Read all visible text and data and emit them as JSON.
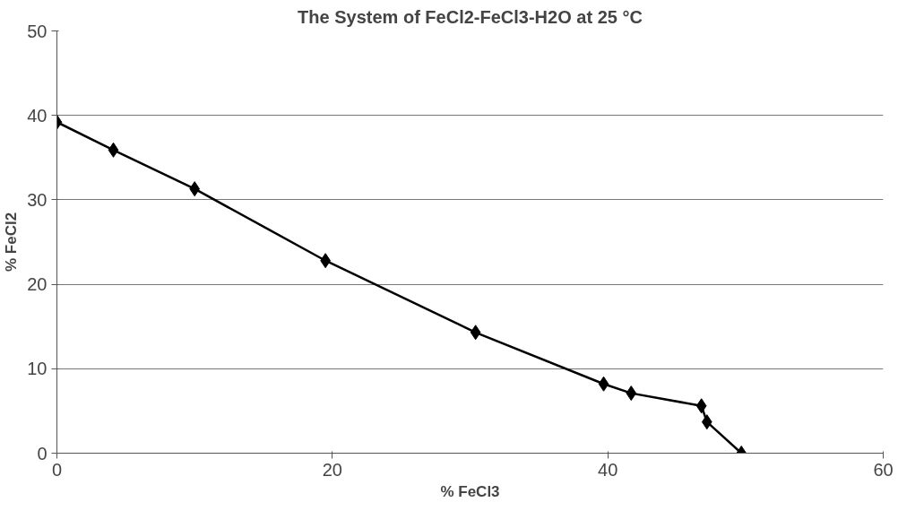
{
  "chart_data": {
    "type": "line",
    "title": "The System of FeCl2-FeCl3-H2O at 25 °C",
    "xlabel": "% FeCl3",
    "ylabel": "% FeCl2",
    "x": [
      0.0,
      4.1,
      10.0,
      19.5,
      30.4,
      39.7,
      41.7,
      46.8,
      47.2,
      49.7
    ],
    "series": [
      {
        "color": "#000000",
        "values": [
          39.2,
          35.9,
          31.3,
          22.8,
          14.3,
          8.2,
          7.1,
          5.6,
          3.7,
          0.0
        ]
      }
    ],
    "xlim": [
      0,
      60
    ],
    "xticks": [
      0,
      20,
      40,
      60
    ],
    "ylim": [
      0,
      50
    ],
    "yticks": [
      0,
      10,
      20,
      30,
      40,
      50
    ],
    "grid": "y",
    "marker": "diamond",
    "line_style": "solid"
  }
}
